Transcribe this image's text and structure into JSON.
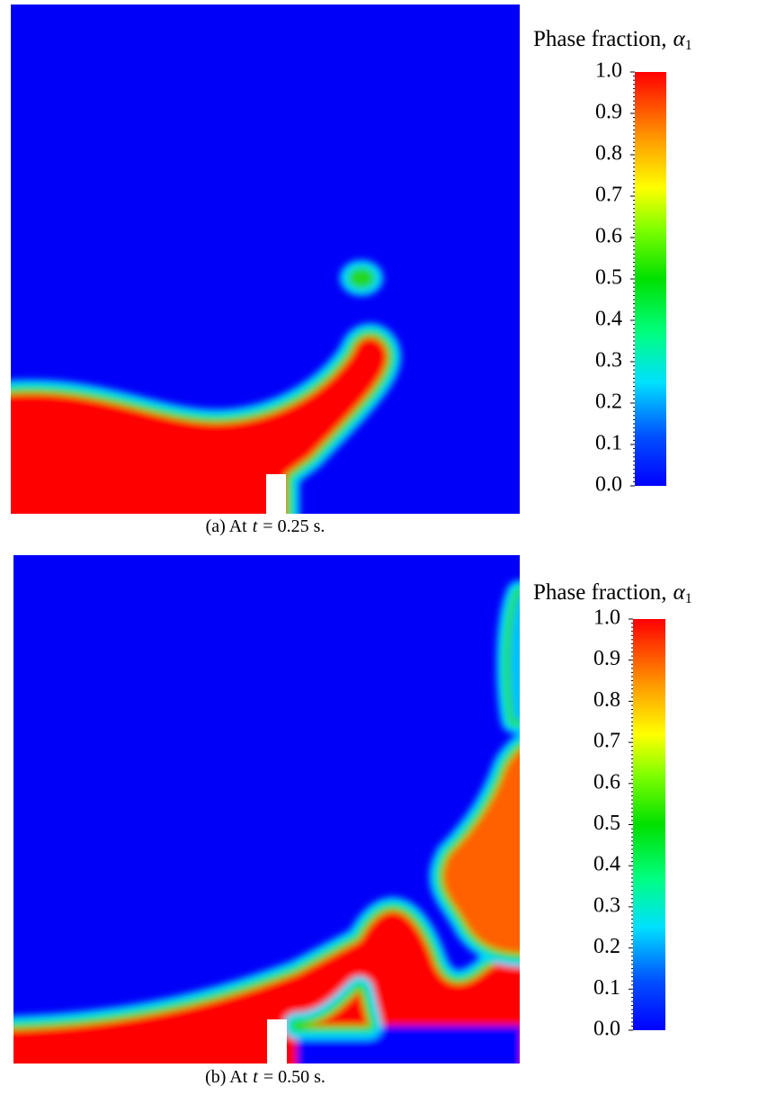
{
  "figures": [
    {
      "caption": {
        "prefix": "(a) At",
        "variable": "t",
        "suffix": "= 0.25 s."
      },
      "colorbar": {
        "label": "Phase fraction,",
        "symbol": "α",
        "subscript": "1",
        "ticks": [
          "0.0",
          "0.1",
          "0.2",
          "0.3",
          "0.4",
          "0.5",
          "0.6",
          "0.7",
          "0.8",
          "0.9",
          "1.0"
        ]
      }
    },
    {
      "caption": {
        "prefix": "(b) At",
        "variable": "t",
        "suffix": "= 0.50 s."
      },
      "colorbar": {
        "label": "Phase fraction,",
        "symbol": "α",
        "subscript": "1",
        "ticks": [
          "0.0",
          "0.1",
          "0.2",
          "0.3",
          "0.4",
          "0.5",
          "0.6",
          "0.7",
          "0.8",
          "0.9",
          "1.0"
        ]
      }
    }
  ]
}
